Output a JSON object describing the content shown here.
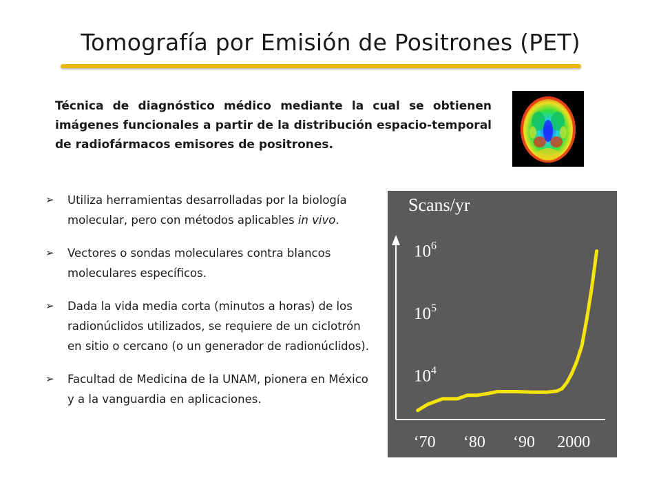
{
  "title": "Tomografía por Emisión de Positrones (PET)",
  "intro": "Técnica de diagnóstico médico mediante la cual se obtienen imágenes funcionales a partir de la distribución espacio-temporal de radiofármacos emisores de positrones.",
  "bullets": [
    {
      "text_before": "Utiliza herramientas desarrolladas por la biología molecular, pero con métodos aplicables ",
      "italic": "in vivo",
      "text_after": "."
    },
    {
      "text_before": "Vectores o sondas moleculares contra blancos moleculares específicos.",
      "italic": "",
      "text_after": ""
    },
    {
      "text_before": "Dada la vida media corta (minutos a horas) de los radionúclidos utilizados, se requiere de un ciclotrón en sitio o cercano (o un generador de radionúclidos).",
      "italic": "",
      "text_after": ""
    },
    {
      "text_before": "Facultad de Medicina de la UNAM, pionera en México y a la vanguardia en aplicaciones.",
      "italic": "",
      "text_after": ""
    }
  ],
  "colors": {
    "accent": "#e8b80c",
    "curve": "#f4e40c",
    "chart_bg": "#5a5a5a",
    "chart_text": "#ffffff"
  },
  "chart_data": {
    "type": "line",
    "title": "Scans/yr",
    "xlabel": "",
    "ylabel": "",
    "y_scale": "log",
    "x_tick_labels": [
      "‘70",
      "‘80",
      "‘90",
      "2000"
    ],
    "x_tick_values": [
      1970,
      1980,
      1990,
      2000
    ],
    "y_tick_labels": [
      {
        "base": "10",
        "exp": "4",
        "value": 10000
      },
      {
        "base": "10",
        "exp": "5",
        "value": 100000
      },
      {
        "base": "10",
        "exp": "6",
        "value": 1000000
      }
    ],
    "xlim": [
      1967,
      2008
    ],
    "ylim": [
      2000,
      2000000
    ],
    "grid": false,
    "series": [
      {
        "x": [
          1970,
          1972,
          1975,
          1978,
          1980,
          1982,
          1984,
          1986,
          1988,
          1990,
          1993,
          1996,
          1998,
          1999,
          2000,
          2001,
          2002,
          2003,
          2004,
          2005,
          2006
        ],
        "y": [
          2800,
          3500,
          4300,
          4300,
          4900,
          4900,
          5200,
          5600,
          5600,
          5600,
          5500,
          5500,
          5700,
          6200,
          7800,
          11000,
          17000,
          30000,
          80000,
          250000,
          1000000
        ]
      }
    ]
  }
}
